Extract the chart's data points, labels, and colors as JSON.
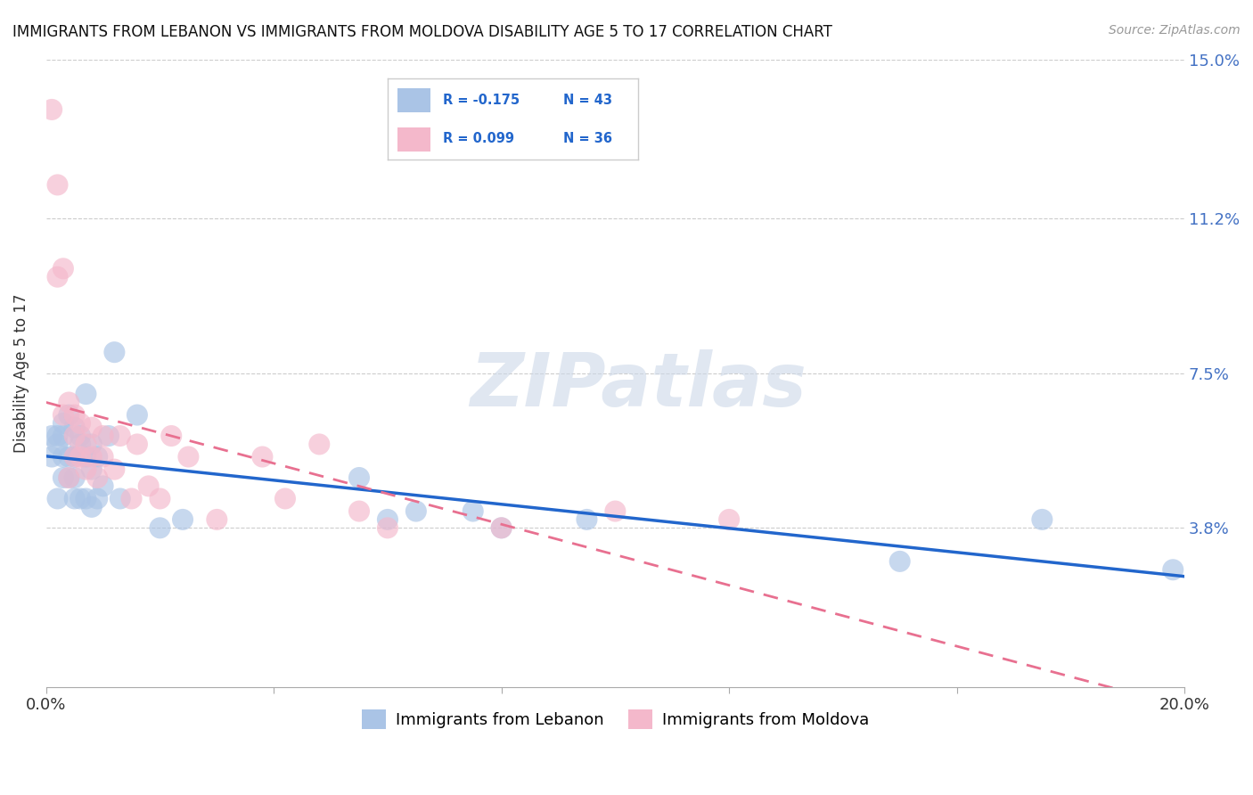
{
  "title": "IMMIGRANTS FROM LEBANON VS IMMIGRANTS FROM MOLDOVA DISABILITY AGE 5 TO 17 CORRELATION CHART",
  "source": "Source: ZipAtlas.com",
  "ylabel": "Disability Age 5 to 17",
  "xlim": [
    0.0,
    0.2
  ],
  "ylim": [
    0.0,
    0.15
  ],
  "xtick_positions": [
    0.0,
    0.04,
    0.08,
    0.12,
    0.16,
    0.2
  ],
  "xticklabels": [
    "0.0%",
    "",
    "",
    "",
    "",
    "20.0%"
  ],
  "ytick_positions": [
    0.038,
    0.075,
    0.112,
    0.15
  ],
  "ytick_labels": [
    "3.8%",
    "7.5%",
    "11.2%",
    "15.0%"
  ],
  "lebanon_color": "#aac4e6",
  "moldova_color": "#f4b8cb",
  "lebanon_line_color": "#2266cc",
  "moldova_line_color": "#e87090",
  "watermark": "ZIPatlas",
  "watermark_color": "#ccd8e8",
  "legend_box_color": "#dddddd",
  "lebanon_x": [
    0.001,
    0.001,
    0.002,
    0.002,
    0.002,
    0.003,
    0.003,
    0.003,
    0.003,
    0.004,
    0.004,
    0.004,
    0.005,
    0.005,
    0.005,
    0.005,
    0.006,
    0.006,
    0.006,
    0.007,
    0.007,
    0.007,
    0.008,
    0.008,
    0.008,
    0.009,
    0.009,
    0.01,
    0.011,
    0.012,
    0.013,
    0.016,
    0.02,
    0.024,
    0.055,
    0.06,
    0.065,
    0.075,
    0.08,
    0.095,
    0.15,
    0.175,
    0.198
  ],
  "lebanon_y": [
    0.055,
    0.06,
    0.045,
    0.058,
    0.06,
    0.055,
    0.06,
    0.063,
    0.05,
    0.05,
    0.055,
    0.065,
    0.045,
    0.05,
    0.055,
    0.062,
    0.045,
    0.058,
    0.06,
    0.045,
    0.055,
    0.07,
    0.043,
    0.052,
    0.058,
    0.045,
    0.055,
    0.048,
    0.06,
    0.08,
    0.045,
    0.065,
    0.038,
    0.04,
    0.05,
    0.04,
    0.042,
    0.042,
    0.038,
    0.04,
    0.03,
    0.04,
    0.028
  ],
  "moldova_x": [
    0.001,
    0.002,
    0.002,
    0.003,
    0.003,
    0.004,
    0.004,
    0.005,
    0.005,
    0.005,
    0.006,
    0.006,
    0.007,
    0.007,
    0.008,
    0.008,
    0.009,
    0.01,
    0.01,
    0.012,
    0.013,
    0.015,
    0.016,
    0.018,
    0.02,
    0.022,
    0.025,
    0.03,
    0.038,
    0.042,
    0.048,
    0.055,
    0.06,
    0.08,
    0.1,
    0.12
  ],
  "moldova_y": [
    0.138,
    0.12,
    0.098,
    0.065,
    0.1,
    0.068,
    0.05,
    0.055,
    0.06,
    0.065,
    0.055,
    0.063,
    0.052,
    0.058,
    0.055,
    0.062,
    0.05,
    0.055,
    0.06,
    0.052,
    0.06,
    0.045,
    0.058,
    0.048,
    0.045,
    0.06,
    0.055,
    0.04,
    0.055,
    0.045,
    0.058,
    0.042,
    0.038,
    0.038,
    0.042,
    0.04
  ]
}
